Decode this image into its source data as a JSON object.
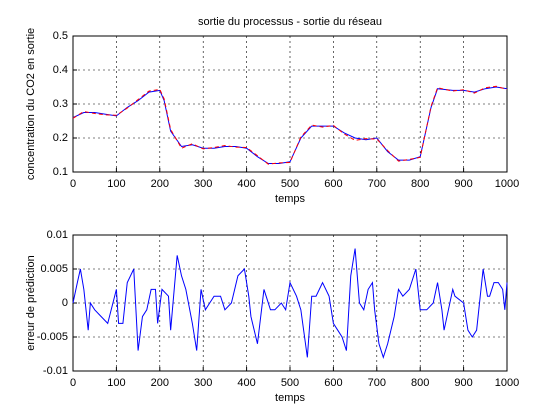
{
  "chart_data": [
    {
      "type": "line",
      "title": "sortie du processus - sortie du réseau",
      "xlabel": "temps",
      "ylabel": "concentration du CO2 en sortie",
      "x": [
        0,
        25,
        50,
        75,
        100,
        125,
        150,
        175,
        200,
        210,
        225,
        250,
        275,
        300,
        325,
        350,
        375,
        400,
        425,
        450,
        475,
        500,
        525,
        550,
        575,
        600,
        625,
        650,
        675,
        700,
        725,
        750,
        775,
        800,
        825,
        840,
        875,
        900,
        925,
        950,
        975,
        1000
      ],
      "series": [
        {
          "color": "#0000ff",
          "line_style": "solid",
          "values": [
            0.26,
            0.275,
            0.275,
            0.27,
            0.265,
            0.29,
            0.31,
            0.335,
            0.34,
            0.31,
            0.22,
            0.175,
            0.18,
            0.17,
            0.17,
            0.175,
            0.175,
            0.17,
            0.145,
            0.125,
            0.125,
            0.13,
            0.2,
            0.235,
            0.235,
            0.235,
            0.215,
            0.2,
            0.195,
            0.2,
            0.16,
            0.135,
            0.135,
            0.145,
            0.29,
            0.345,
            0.34,
            0.34,
            0.335,
            0.345,
            0.35,
            0.345
          ]
        },
        {
          "color": "#ff0000",
          "line_style": "dashed",
          "values": [
            0.258,
            0.278,
            0.272,
            0.268,
            0.267,
            0.288,
            0.313,
            0.338,
            0.343,
            0.315,
            0.225,
            0.17,
            0.183,
            0.168,
            0.172,
            0.178,
            0.173,
            0.172,
            0.148,
            0.123,
            0.127,
            0.128,
            0.203,
            0.238,
            0.232,
            0.237,
            0.212,
            0.193,
            0.198,
            0.197,
            0.163,
            0.132,
            0.137,
            0.143,
            0.293,
            0.348,
            0.338,
            0.342,
            0.332,
            0.348,
            0.352,
            0.343
          ]
        }
      ],
      "xlim": [
        0,
        1000
      ],
      "xticks": [
        0,
        100,
        200,
        300,
        400,
        500,
        600,
        700,
        800,
        900,
        1000
      ],
      "ylim": [
        0.1,
        0.5
      ],
      "yticks": [
        0.1,
        0.2,
        0.3,
        0.4,
        0.5
      ],
      "grid": true
    },
    {
      "type": "line",
      "xlabel": "temps",
      "ylabel": "erreur de prédiction",
      "x": [
        0,
        10,
        17,
        25,
        35,
        40,
        50,
        65,
        80,
        100,
        105,
        115,
        125,
        140,
        150,
        160,
        170,
        180,
        190,
        195,
        205,
        220,
        225,
        240,
        250,
        260,
        275,
        285,
        295,
        305,
        315,
        325,
        340,
        350,
        365,
        380,
        395,
        405,
        410,
        425,
        440,
        445,
        455,
        465,
        480,
        490,
        500,
        515,
        525,
        540,
        550,
        560,
        575,
        590,
        600,
        610,
        620,
        630,
        640,
        650,
        660,
        670,
        680,
        690,
        695,
        705,
        715,
        725,
        740,
        750,
        760,
        775,
        790,
        800,
        815,
        830,
        840,
        850,
        855,
        865,
        875,
        880,
        900,
        910,
        920,
        930,
        945,
        955,
        960,
        970,
        980,
        990,
        995,
        1000
      ],
      "series": [
        {
          "color": "#0000ff",
          "line_style": "solid",
          "values": [
            0,
            0.003,
            0.005,
            0.002,
            -0.004,
            0,
            -0.001,
            -0.002,
            -0.003,
            0.002,
            -0.003,
            -0.003,
            0.003,
            0.005,
            -0.007,
            -0.002,
            -0.001,
            0.002,
            0.002,
            -0.003,
            0.002,
            0.001,
            -0.004,
            0.007,
            0.004,
            0.002,
            -0.003,
            -0.007,
            0.002,
            -0.001,
            0,
            0.001,
            0.001,
            -0.001,
            0,
            0.004,
            0.005,
            0.001,
            -0.002,
            -0.006,
            0.002,
            0.001,
            -0.001,
            -0.001,
            0,
            -0.001,
            0.003,
            0.001,
            -0.001,
            -0.008,
            0.001,
            0.001,
            0.003,
            0.001,
            -0.003,
            -0.004,
            -0.005,
            -0.007,
            0.004,
            0.008,
            0,
            -0.001,
            0.002,
            0.003,
            -0.001,
            -0.006,
            -0.008,
            -0.006,
            -0.002,
            0.002,
            0.001,
            0.002,
            0.005,
            -0.001,
            -0.001,
            0,
            0.003,
            -0.001,
            -0.004,
            -0.001,
            0.002,
            0.001,
            0,
            -0.004,
            -0.005,
            -0.004,
            0.005,
            0.001,
            0.001,
            0.003,
            0.003,
            0.002,
            -0.001,
            0.003
          ]
        }
      ],
      "xlim": [
        0,
        1000
      ],
      "xticks": [
        0,
        100,
        200,
        300,
        400,
        500,
        600,
        700,
        800,
        900,
        1000
      ],
      "ylim": [
        -0.01,
        0.01
      ],
      "yticks": [
        -0.01,
        -0.005,
        0,
        0.005,
        0.01
      ],
      "grid": true
    }
  ]
}
